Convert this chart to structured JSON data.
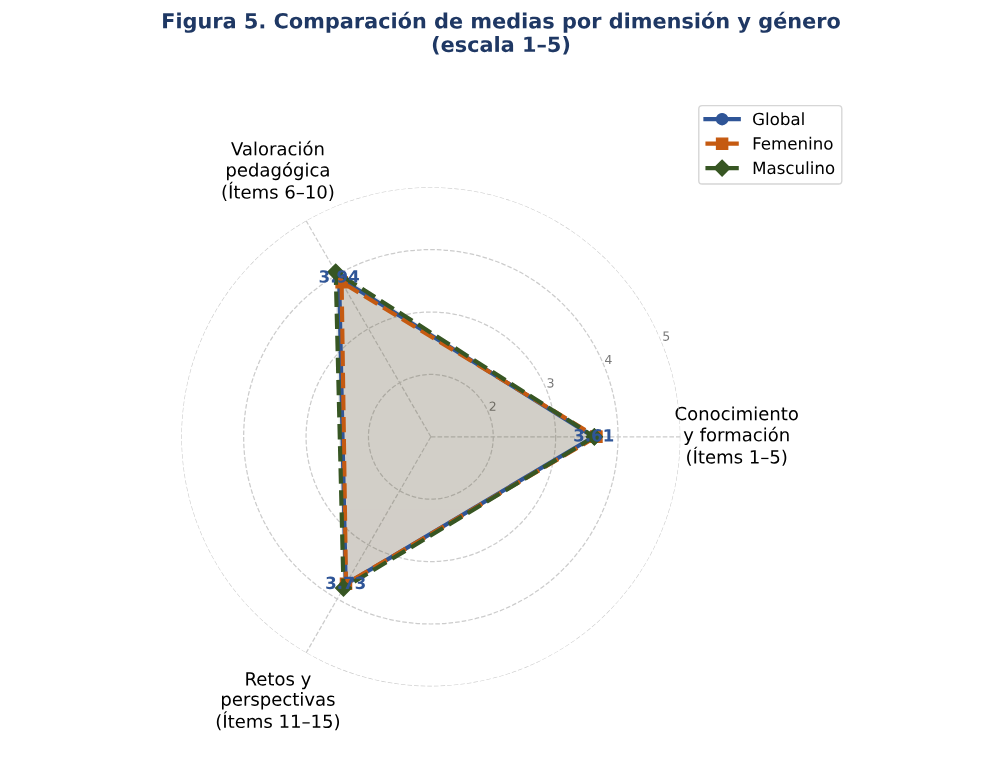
{
  "chart_data": {
    "type": "radar",
    "title": "Figura 5. Comparación de medias por dimensión y género\n(escala 1–5)",
    "categories": [
      "Conocimiento\ny formación\n(Ítems 1–5)",
      "Retos y\nperspectivas\n(Ítems 11–15)",
      "Valoración\npedagógica\n(Ítems 6–10)"
    ],
    "series": [
      {
        "name": "Global",
        "color": "#2f5597",
        "values": [
          3.61,
          3.73,
          3.94
        ],
        "marker": "circle",
        "line_style": "solid",
        "value_labels": [
          "3.61",
          "3.73",
          "3.94"
        ]
      },
      {
        "name": "Femenino",
        "color": "#c55a11",
        "values": [
          3.65,
          3.72,
          3.86
        ],
        "marker": "square",
        "line_style": "dashed"
      },
      {
        "name": "Masculino",
        "color": "#375623",
        "values": [
          3.62,
          3.8,
          4.05
        ],
        "marker": "diamond",
        "line_style": "dashed"
      }
    ],
    "ylim": [
      1,
      5
    ],
    "yticks": [
      2,
      3,
      4,
      5
    ],
    "grid": true,
    "legend": "top right"
  }
}
